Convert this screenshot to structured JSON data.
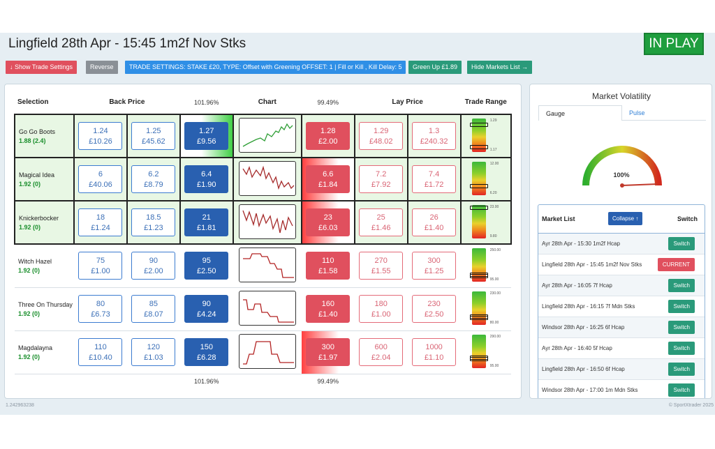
{
  "header": {
    "title": "Lingfield 28th Apr - 15:45 1m2f Nov Stks",
    "status": "IN PLAY"
  },
  "toolbar": {
    "show_trade": "↓ Show Trade Settings",
    "reverse": "Reverse",
    "settings": "TRADE SETTINGS: STAKE £20, TYPE: Offset with Greening OFFSET: 1 | Fill or Kill , Kill Delay: 5",
    "green_up": "Green Up £1.89",
    "hide_markets": "Hide Markets List →"
  },
  "grid": {
    "col_selection": "Selection",
    "col_back": "Back Price",
    "back_pct": "101.96%",
    "col_chart": "Chart",
    "lay_pct": "99.49%",
    "col_lay": "Lay Price",
    "col_range": "Trade Range",
    "rows": [
      {
        "name": "Go Go Boots",
        "wt": "1.88",
        "pl": "(2.4)",
        "b3": [
          "1.24",
          "£10.26"
        ],
        "b2": [
          "1.25",
          "£45.62"
        ],
        "b1": [
          "1.27",
          "£9.56"
        ],
        "l1": [
          "1.28",
          "£2.00"
        ],
        "l2": [
          "1.29",
          "£48.02"
        ],
        "l3": [
          "1.3",
          "£240.32"
        ],
        "hi": "1.29",
        "lo": "1.17"
      },
      {
        "name": "Magical Idea",
        "wt": "1.92",
        "pl": "(0)",
        "b3": [
          "6",
          "£40.06"
        ],
        "b2": [
          "6.2",
          "£8.79"
        ],
        "b1": [
          "6.4",
          "£1.90"
        ],
        "l1": [
          "6.6",
          "£1.84"
        ],
        "l2": [
          "7.2",
          "£7.92"
        ],
        "l3": [
          "7.4",
          "£1.72"
        ],
        "hi": "12.00",
        "lo": "6.20"
      },
      {
        "name": "Knickerbocker",
        "wt": "1.92",
        "pl": "(0)",
        "b3": [
          "18",
          "£1.24"
        ],
        "b2": [
          "18.5",
          "£1.23"
        ],
        "b1": [
          "21",
          "£1.81"
        ],
        "l1": [
          "23",
          "£6.03"
        ],
        "l2": [
          "25",
          "£1.46"
        ],
        "l3": [
          "26",
          "£1.40"
        ],
        "hi": "23.00",
        "lo": "9.80"
      },
      {
        "name": "Witch Hazel",
        "wt": "1.92",
        "pl": "(0)",
        "b3": [
          "75",
          "£1.00"
        ],
        "b2": [
          "90",
          "£2.00"
        ],
        "b1": [
          "95",
          "£2.50"
        ],
        "l1": [
          "110",
          "£1.58"
        ],
        "l2": [
          "270",
          "£1.55"
        ],
        "l3": [
          "300",
          "£1.25"
        ],
        "hi": "250.00",
        "lo": "95.00"
      },
      {
        "name": "Three On Thursday",
        "wt": "1.92",
        "pl": "(0)",
        "b3": [
          "80",
          "£6.73"
        ],
        "b2": [
          "85",
          "£8.07"
        ],
        "b1": [
          "90",
          "£4.24"
        ],
        "l1": [
          "160",
          "£1.40"
        ],
        "l2": [
          "180",
          "£1.00"
        ],
        "l3": [
          "230",
          "£2.50"
        ],
        "hi": "230.00",
        "lo": "80.00"
      },
      {
        "name": "Magdalayna",
        "wt": "1.92",
        "pl": "(0)",
        "b3": [
          "110",
          "£10.40"
        ],
        "b2": [
          "120",
          "£1.03"
        ],
        "b1": [
          "150",
          "£6.28"
        ],
        "l1": [
          "300",
          "£1.97"
        ],
        "l2": [
          "600",
          "£2.04"
        ],
        "l3": [
          "1000",
          "£1.10"
        ],
        "hi": "290.00",
        "lo": "95.00"
      }
    ],
    "foot_back": "101.96%",
    "foot_lay": "99.49%"
  },
  "volatility": {
    "title": "Market Volatility",
    "tab_gauge": "Gauge",
    "tab_pulse": "Pulse",
    "value": "100%"
  },
  "market_list": {
    "title": "Market List",
    "collapse": "Collapse ↑",
    "switch_col": "Switch",
    "items": [
      {
        "name": "Ayr 28th Apr - 15:30 1m2f Hcap",
        "action": "Switch"
      },
      {
        "name": "Lingfield 28th Apr - 15:45 1m2f Nov Stks",
        "action": "CURRENT"
      },
      {
        "name": "Ayr 28th Apr - 16:05 7f Hcap",
        "action": "Switch"
      },
      {
        "name": "Lingfield 28th Apr - 16:15 7f Mdn Stks",
        "action": "Switch"
      },
      {
        "name": "Windsor 28th Apr - 16:25 6f Hcap",
        "action": "Switch"
      },
      {
        "name": "Ayr 28th Apr - 16:40 5f Hcap",
        "action": "Switch"
      },
      {
        "name": "Lingfield 28th Apr - 16:50 6f Hcap",
        "action": "Switch"
      },
      {
        "name": "Windsor 28th Apr - 17:00 1m Mdn Stks",
        "action": "Switch"
      }
    ]
  },
  "footer": {
    "market_id": "1.242963238",
    "copyright": "© SportXtrader 2025"
  }
}
